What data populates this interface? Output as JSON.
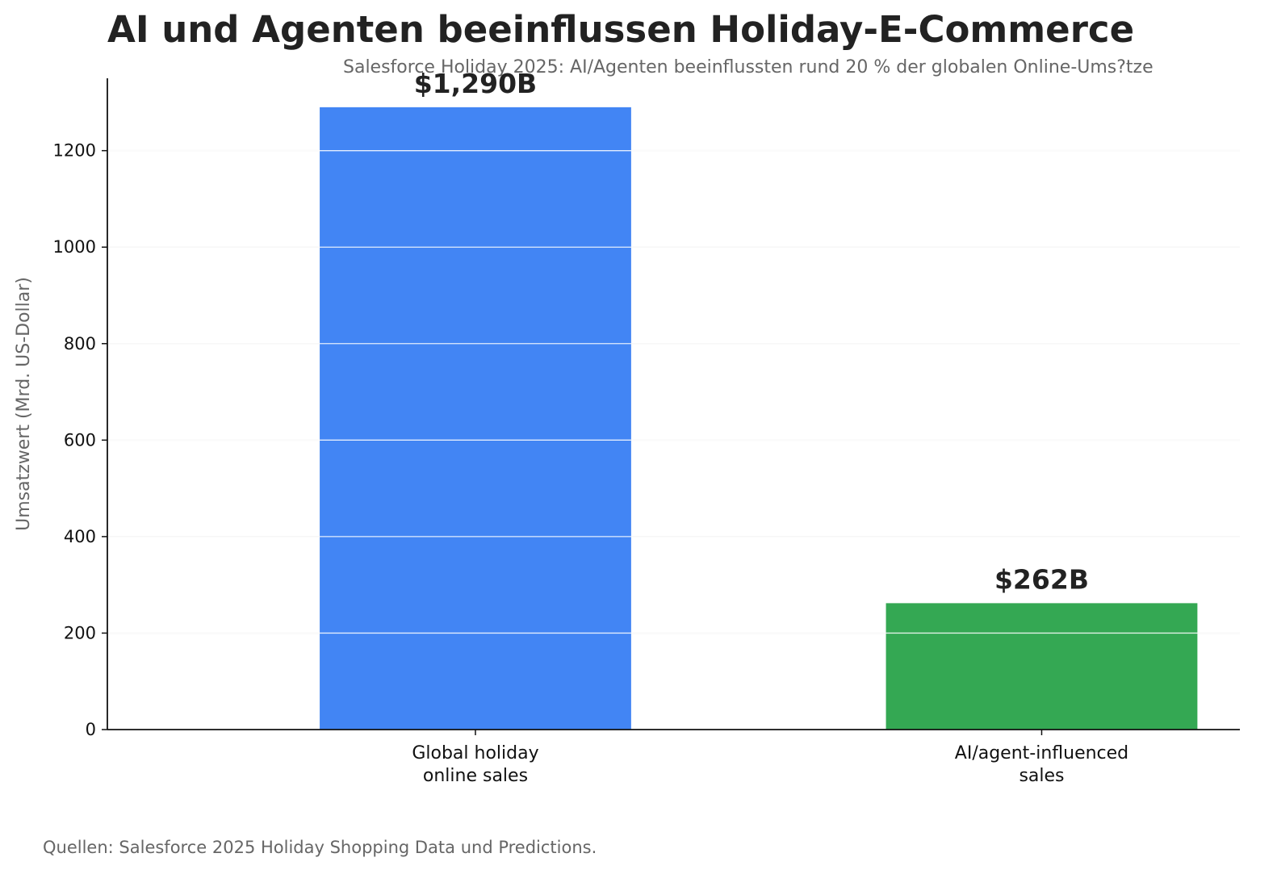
{
  "chart_data": {
    "type": "bar",
    "title": "AI und Agenten beeinflussen Holiday-E-Commerce",
    "subtitle": "Salesforce Holiday 2025: AI/Agenten beeinflussten rund 20 % der globalen Online-Ums?tze",
    "ylabel": "Umsatzwert (Mrd. US-Dollar)",
    "xlabel": "",
    "ylim": [
      0,
      1350
    ],
    "yticks": [
      0,
      200,
      400,
      600,
      800,
      1000,
      1200
    ],
    "grid": true,
    "categories": [
      [
        "Global holiday",
        "online sales"
      ],
      [
        "AI/agent-influenced",
        "sales"
      ]
    ],
    "values": [
      1290,
      262
    ],
    "data_labels": [
      "$1,290B",
      "$262B"
    ],
    "colors": [
      "#4285F4",
      "#34A853"
    ]
  },
  "source": "Quellen: Salesforce 2025 Holiday Shopping Data und Predictions."
}
